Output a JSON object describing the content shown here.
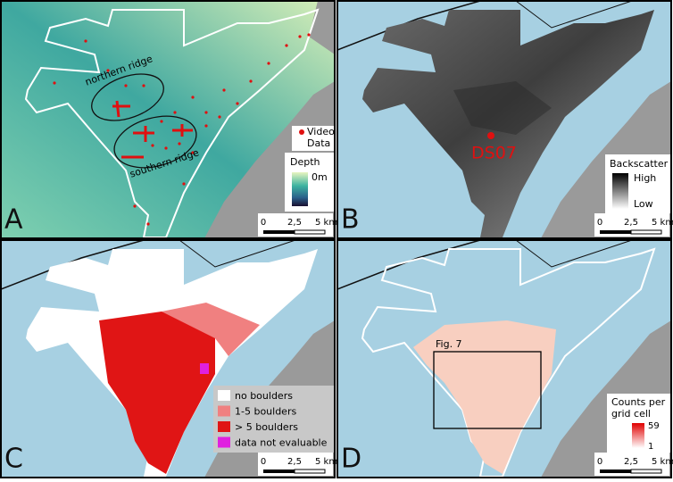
{
  "panels": [
    {
      "label": "A",
      "ridges": [
        "northern ridge",
        "southern ridge"
      ],
      "video_legend": [
        "Video",
        "Data"
      ],
      "depth_legend": {
        "title": "Depth",
        "tick": "0m"
      },
      "scale_bar": [
        0,
        "2,5",
        "5 km"
      ]
    },
    {
      "label": "B",
      "station": "DS07",
      "backscatter_legend": {
        "title": "Backscatter",
        "high": "High",
        "low": "Low"
      },
      "scale_bar": [
        0,
        "2,5",
        "5 km"
      ]
    },
    {
      "label": "C",
      "boulder_legend": [
        "no boulders",
        "1-5 boulders",
        "> 5 boulders",
        "data not evaluable"
      ],
      "scale_bar": [
        0,
        "2,5",
        "5 km"
      ]
    },
    {
      "label": "D",
      "figure_box": "Fig. 7",
      "counts_legend": {
        "title": [
          "Counts per",
          "grid cell"
        ],
        "max": 59,
        "min": 1
      },
      "scale_bar": [
        0,
        "2,5",
        "5 km"
      ]
    }
  ]
}
